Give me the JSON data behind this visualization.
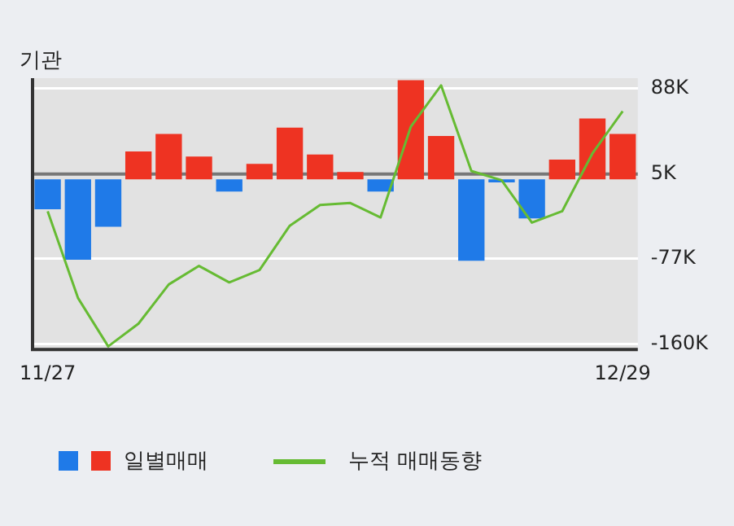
{
  "chart_data": {
    "type": "bar",
    "title": "기관",
    "categories": [
      "11/27",
      null,
      null,
      null,
      null,
      null,
      null,
      null,
      null,
      null,
      null,
      null,
      null,
      null,
      null,
      null,
      null,
      null,
      null,
      "12/29"
    ],
    "series": [
      {
        "name": "일별매매",
        "values": [
          -29,
          -78,
          -46,
          27,
          44,
          22,
          -12,
          15,
          50,
          24,
          7,
          -12,
          96,
          42,
          -79,
          -3,
          -38,
          19,
          59,
          44
        ],
        "colors": [
          "#1f7ae8",
          "#1f7ae8",
          "#1f7ae8",
          "#ee3322",
          "#ee3322",
          "#ee3322",
          "#1f7ae8",
          "#ee3322",
          "#ee3322",
          "#ee3322",
          "#ee3322",
          "#1f7ae8",
          "#ee3322",
          "#ee3322",
          "#1f7ae8",
          "#1f7ae8",
          "#1f7ae8",
          "#ee3322",
          "#ee3322",
          "#ee3322"
        ]
      },
      {
        "name": "누적 매매동향",
        "type": "line",
        "color": "#66bb33",
        "values": [
          -31,
          -115,
          -162,
          -140,
          -102,
          -84,
          -100,
          -88,
          -45,
          -25,
          -23,
          -37,
          51,
          91,
          8,
          -1,
          -42,
          -31,
          25,
          66
        ]
      }
    ],
    "ref_lines": [
      {
        "axis": "y",
        "value": 5,
        "color": "#777777"
      }
    ],
    "ylim": [
      -165,
      98
    ],
    "yticks": [
      {
        "value": 88,
        "label": "88K"
      },
      {
        "value": 5,
        "label": "5K"
      },
      {
        "value": -77,
        "label": "-77K"
      },
      {
        "value": -160,
        "label": "-160K"
      }
    ],
    "grid": "y",
    "legend": "bottom",
    "marker": "none"
  }
}
